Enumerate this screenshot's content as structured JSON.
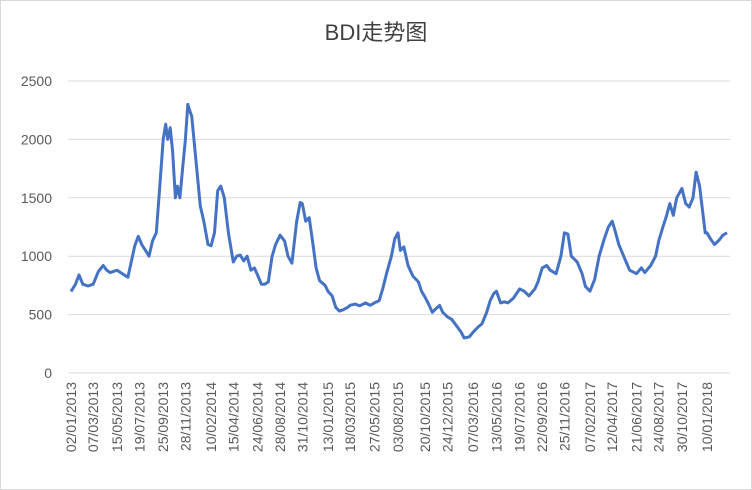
{
  "chart_data": {
    "type": "line",
    "title": "BDI走势图",
    "color": "#4472c4",
    "grid": true,
    "ylim": [
      0,
      2500
    ],
    "yticks": [
      0,
      500,
      1000,
      1500,
      2000,
      2500
    ],
    "xticks": [
      "02/01/2013",
      "07/03/2013",
      "15/05/2013",
      "19/07/2013",
      "25/09/2013",
      "28/11/2013",
      "10/02/2014",
      "15/04/2014",
      "24/06/2014",
      "28/08/2014",
      "31/10/2014",
      "13/01/2015",
      "18/03/2015",
      "27/05/2015",
      "03/08/2015",
      "20/10/2015",
      "24/12/2015",
      "07/03/2016",
      "13/05/2016",
      "19/07/2016",
      "22/09/2016",
      "25/11/2016",
      "07/02/2017",
      "12/04/2017",
      "21/06/2017",
      "24/08/2017",
      "30/10/2017",
      "10/01/2018"
    ],
    "x": [
      "02/01/2013",
      "15/01/2013",
      "25/01/2013",
      "05/02/2013",
      "20/02/2013",
      "07/03/2013",
      "22/03/2013",
      "05/04/2013",
      "15/04/2013",
      "25/04/2013",
      "15/05/2013",
      "30/05/2013",
      "15/06/2013",
      "05/07/2013",
      "15/07/2013",
      "25/07/2013",
      "05/08/2013",
      "15/08/2013",
      "25/08/2013",
      "05/09/2013",
      "15/09/2013",
      "25/09/2013",
      "02/10/2013",
      "08/10/2013",
      "15/10/2013",
      "22/10/2013",
      "30/10/2013",
      "05/11/2013",
      "12/11/2013",
      "20/11/2013",
      "28/11/2013",
      "05/12/2013",
      "10/12/2013",
      "16/12/2013",
      "10/01/2014",
      "20/01/2014",
      "01/02/2014",
      "10/02/2014",
      "20/02/2014",
      "01/03/2014",
      "10/03/2014",
      "20/03/2014",
      "01/04/2014",
      "15/04/2014",
      "25/04/2014",
      "05/05/2014",
      "15/05/2014",
      "25/05/2014",
      "05/06/2014",
      "15/06/2014",
      "24/06/2014",
      "05/07/2014",
      "15/07/2014",
      "25/07/2014",
      "05/08/2014",
      "15/08/2014",
      "28/08/2014",
      "10/09/2014",
      "20/09/2014",
      "01/10/2014",
      "15/10/2014",
      "25/10/2014",
      "31/10/2014",
      "10/11/2014",
      "20/11/2014",
      "01/12/2014",
      "10/12/2014",
      "20/12/2014",
      "05/01/2015",
      "13/01/2015",
      "25/01/2015",
      "05/02/2015",
      "15/02/2015",
      "25/02/2015",
      "10/03/2015",
      "18/03/2015",
      "01/04/2015",
      "15/04/2015",
      "01/05/2015",
      "15/05/2015",
      "27/05/2015",
      "10/06/2015",
      "20/06/2015",
      "01/07/2015",
      "15/07/2015",
      "25/07/2015",
      "03/08/2015",
      "10/08/2015",
      "20/08/2015",
      "01/09/2015",
      "15/09/2015",
      "01/10/2015",
      "10/10/2015",
      "20/10/2015",
      "01/11/2015",
      "10/11/2015",
      "20/11/2015",
      "01/12/2015",
      "10/12/2015",
      "24/12/2015",
      "05/01/2016",
      "20/01/2016",
      "01/02/2016",
      "10/02/2016",
      "25/02/2016",
      "07/03/2016",
      "20/03/2016",
      "01/04/2016",
      "15/04/2016",
      "25/04/2016",
      "05/05/2016",
      "13/05/2016",
      "25/05/2016",
      "05/06/2016",
      "15/06/2016",
      "01/07/2016",
      "19/07/2016",
      "01/08/2016",
      "15/08/2016",
      "01/09/2016",
      "10/09/2016",
      "22/09/2016",
      "05/10/2016",
      "15/10/2016",
      "01/11/2016",
      "15/11/2016",
      "25/11/2016",
      "05/12/2016",
      "15/12/2016",
      "01/01/2017",
      "15/01/2017",
      "25/01/2017",
      "07/02/2017",
      "20/02/2017",
      "05/03/2017",
      "20/03/2017",
      "01/04/2017",
      "12/04/2017",
      "20/04/2017",
      "01/05/2017",
      "15/05/2017",
      "01/06/2017",
      "21/06/2017",
      "05/07/2017",
      "15/07/2017",
      "01/08/2017",
      "15/08/2017",
      "24/08/2017",
      "05/09/2017",
      "15/09/2017",
      "25/09/2017",
      "05/10/2017",
      "15/10/2017",
      "30/10/2017",
      "10/11/2017",
      "20/11/2017",
      "01/12/2017",
      "10/12/2017",
      "20/12/2017",
      "28/12/2017",
      "05/01/2018",
      "10/01/2018",
      "20/01/2018",
      "01/02/2018",
      "15/02/2018",
      "25/02/2018",
      "09/03/2018"
    ],
    "values": [
      698,
      760,
      840,
      760,
      745,
      760,
      870,
      920,
      880,
      860,
      880,
      850,
      820,
      1090,
      1170,
      1100,
      1050,
      1000,
      1130,
      1200,
      1600,
      2000,
      2130,
      2000,
      2100,
      1900,
      1500,
      1600,
      1500,
      1750,
      2000,
      2300,
      2250,
      2200,
      1430,
      1300,
      1100,
      1090,
      1200,
      1560,
      1600,
      1500,
      1200,
      950,
      1000,
      1010,
      960,
      1000,
      880,
      900,
      840,
      760,
      760,
      780,
      1000,
      1100,
      1180,
      1130,
      1000,
      940,
      1300,
      1460,
      1450,
      1300,
      1330,
      1100,
      900,
      790,
      750,
      700,
      660,
      560,
      530,
      540,
      560,
      580,
      590,
      575,
      600,
      580,
      600,
      620,
      720,
      850,
      1000,
      1150,
      1200,
      1050,
      1080,
      920,
      830,
      780,
      700,
      650,
      580,
      520,
      550,
      580,
      520,
      480,
      460,
      400,
      350,
      300,
      310,
      350,
      390,
      420,
      520,
      620,
      680,
      700,
      600,
      610,
      600,
      640,
      720,
      700,
      660,
      720,
      780,
      900,
      920,
      880,
      850,
      1000,
      1200,
      1190,
      1000,
      950,
      850,
      740,
      700,
      800,
      1000,
      1150,
      1250,
      1300,
      1220,
      1100,
      1000,
      880,
      850,
      900,
      860,
      920,
      1000,
      1130,
      1250,
      1340,
      1450,
      1350,
      1500,
      1580,
      1450,
      1420,
      1500,
      1720,
      1600,
      1400,
      1200,
      1200,
      1150,
      1100,
      1140,
      1180,
      1200
    ]
  }
}
